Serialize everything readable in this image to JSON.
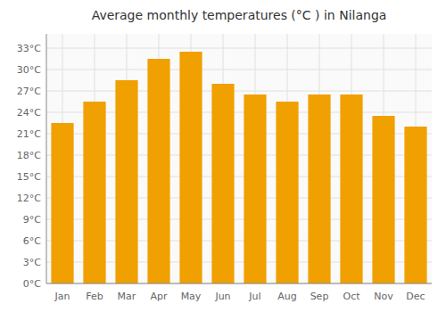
{
  "chart_data": {
    "type": "bar",
    "title": "Average monthly temperatures (°C ) in Nilanga",
    "categories": [
      "Jan",
      "Feb",
      "Mar",
      "Apr",
      "May",
      "Jun",
      "Jul",
      "Aug",
      "Sep",
      "Oct",
      "Nov",
      "Dec"
    ],
    "values": [
      22.5,
      25.5,
      28.5,
      31.5,
      32.5,
      28.0,
      26.5,
      25.5,
      26.5,
      26.5,
      23.5,
      22.0
    ],
    "color": "#F0A000",
    "ylim": [
      0,
      35
    ],
    "yticks": [
      {
        "value": 0,
        "label": "0°C"
      },
      {
        "value": 3,
        "label": "3°C"
      },
      {
        "value": 6,
        "label": "6°C"
      },
      {
        "value": 9,
        "label": "9°C"
      },
      {
        "value": 12,
        "label": "12°C"
      },
      {
        "value": 15,
        "label": "15°C"
      },
      {
        "value": 18,
        "label": "18°C"
      },
      {
        "value": 21,
        "label": "21°C"
      },
      {
        "value": 24,
        "label": "24°C"
      },
      {
        "value": 27,
        "label": "27°C"
      },
      {
        "value": 30,
        "label": "30°C"
      },
      {
        "value": 33,
        "label": "33°C"
      }
    ],
    "grid": true
  }
}
